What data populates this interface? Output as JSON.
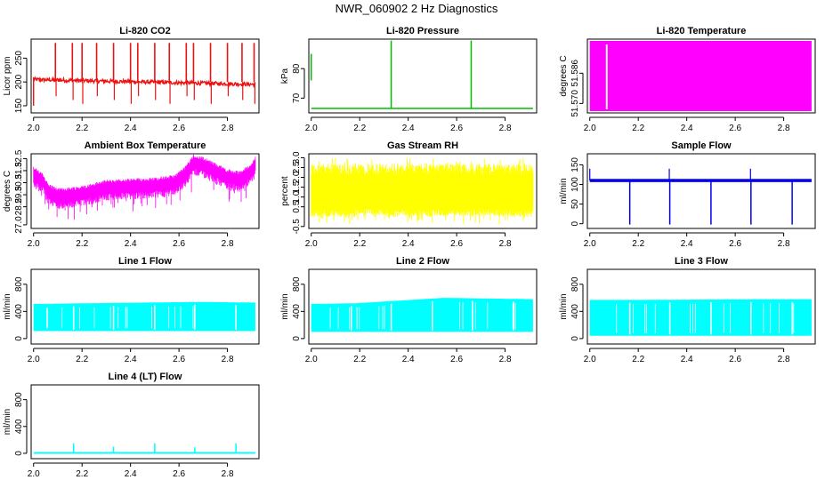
{
  "title": "NWR_060902 2 Hz Diagnostics",
  "chart_data": [
    {
      "type": "line",
      "title": "Li-820 CO2",
      "ylabel": "Licor ppm",
      "color": "#ee1111",
      "x_ticks": [
        "2.0",
        "2.2",
        "2.4",
        "2.6",
        "2.8"
      ],
      "x_range": [
        1.99,
        2.93
      ],
      "y_ticks": [
        "150",
        "200",
        "250"
      ],
      "y_tick_values": [
        150,
        200,
        250
      ],
      "y_range": [
        135,
        290
      ],
      "series": {
        "kind": "co2",
        "baseline_start": 205,
        "baseline_end": 195,
        "spike_x": [
          2.09,
          2.16,
          2.2,
          2.26,
          2.33,
          2.4,
          2.43,
          2.5,
          2.56,
          2.63,
          2.66,
          2.73,
          2.8,
          2.86,
          2.91
        ]
      }
    },
    {
      "type": "line",
      "title": "Li-820 Pressure",
      "ylabel": "kPa",
      "color": "#00bb00",
      "x_ticks": [
        "2.0",
        "2.2",
        "2.4",
        "2.6",
        "2.8"
      ],
      "x_range": [
        1.99,
        2.93
      ],
      "y_ticks": [
        "70",
        "80"
      ],
      "y_tick_values": [
        70,
        80
      ],
      "y_range": [
        65,
        90
      ],
      "series": {
        "kind": "pressure",
        "baseline": 66.5,
        "spike_x": [
          2.33,
          2.66
        ],
        "spike_top": 89.5,
        "start_mark": {
          "x": 2.0,
          "from": 76,
          "to": 85
        }
      }
    },
    {
      "type": "area",
      "title": "Li-820 Temperature",
      "ylabel": "degrees C",
      "color": "#ff00ff",
      "x_ticks": [
        "2.0",
        "2.2",
        "2.4",
        "2.6",
        "2.8"
      ],
      "x_range": [
        1.99,
        2.93
      ],
      "y_ticks": [
        "51.570",
        "51.586"
      ],
      "y_tick_values": [
        51.57,
        51.586
      ],
      "y_range": [
        51.565,
        51.604
      ],
      "series": {
        "kind": "temp",
        "x_start": 2.0,
        "x_end": 2.915,
        "gap_x": 2.07
      }
    },
    {
      "type": "line",
      "title": "Ambient Box Temperature",
      "ylabel": "degrees C",
      "color": "#ff00ff",
      "x_ticks": [
        "2.0",
        "2.2",
        "2.4",
        "2.6",
        "2.8"
      ],
      "x_range": [
        1.99,
        2.93
      ],
      "y_ticks": [
        "27.0",
        "28.5",
        "29.5",
        "30.5",
        "31.5",
        "32.5"
      ],
      "y_tick_values": [
        27.0,
        28.5,
        29.5,
        30.5,
        31.5,
        32.5
      ],
      "y_range": [
        26.7,
        32.9
      ],
      "series": {
        "kind": "ambient",
        "profile_x": [
          2.0,
          2.04,
          2.06,
          2.1,
          2.2,
          2.3,
          2.4,
          2.5,
          2.58,
          2.62,
          2.66,
          2.7,
          2.75,
          2.8,
          2.85,
          2.9,
          2.92
        ],
        "profile_y": [
          31.2,
          30.6,
          29.8,
          29.4,
          29.6,
          30.1,
          30.2,
          30.3,
          30.5,
          31.1,
          32.2,
          32.0,
          31.5,
          31.0,
          30.8,
          31.5,
          32.2
        ]
      }
    },
    {
      "type": "line",
      "title": "Gas Stream RH",
      "ylabel": "percent",
      "color": "#ffff00",
      "x_ticks": [
        "2.0",
        "2.2",
        "2.4",
        "2.6",
        "2.8"
      ],
      "x_range": [
        1.99,
        2.93
      ],
      "y_ticks": [
        "-0.5",
        "0.5",
        "1.0",
        "1.5",
        "2.0",
        "2.5",
        "3.0"
      ],
      "y_tick_values": [
        -0.5,
        0.5,
        1.0,
        1.5,
        2.0,
        2.5,
        3.0
      ],
      "y_range": [
        -0.6,
        3.2
      ],
      "series": {
        "kind": "rh",
        "low": 0.0,
        "high": 2.7
      }
    },
    {
      "type": "line",
      "title": "Sample Flow",
      "ylabel": "ml/min",
      "color": "#0000ee",
      "x_ticks": [
        "2.0",
        "2.2",
        "2.4",
        "2.6",
        "2.8"
      ],
      "x_range": [
        1.99,
        2.93
      ],
      "y_ticks": [
        "0",
        "50",
        "100",
        "150"
      ],
      "y_tick_values": [
        0,
        50,
        100,
        150
      ],
      "y_range": [
        -12,
        178
      ],
      "series": {
        "kind": "sample",
        "baseline": 110,
        "dip_x": [
          2.165,
          2.33,
          2.5,
          2.665,
          2.835
        ],
        "dip_y": -2,
        "spike_x": [
          2.33,
          2.665
        ],
        "spike_y": 140
      }
    },
    {
      "type": "area",
      "title": "Line 1 Flow",
      "ylabel": "ml/min",
      "color": "#00ffff",
      "x_ticks": [
        "2.0",
        "2.2",
        "2.4",
        "2.6",
        "2.8"
      ],
      "x_range": [
        1.99,
        2.93
      ],
      "y_ticks": [
        "0",
        "400",
        "800"
      ],
      "y_tick_values": [
        0,
        400,
        800
      ],
      "y_range": [
        -80,
        1020
      ],
      "series": {
        "kind": "band",
        "x_start": 2.0,
        "x_end": 2.915,
        "low": 110,
        "high": [
          510,
          520,
          530,
          540,
          530
        ],
        "gaps": [
          2.165,
          2.33,
          2.5,
          2.665,
          2.835
        ]
      }
    },
    {
      "type": "area",
      "title": "Line 2 Flow",
      "ylabel": "ml/min",
      "color": "#00ffff",
      "x_ticks": [
        "2.0",
        "2.2",
        "2.4",
        "2.6",
        "2.8"
      ],
      "x_range": [
        1.99,
        2.93
      ],
      "y_ticks": [
        "0",
        "400",
        "800"
      ],
      "y_tick_values": [
        0,
        400,
        800
      ],
      "y_range": [
        -80,
        1020
      ],
      "series": {
        "kind": "band",
        "x_start": 2.0,
        "x_end": 2.915,
        "low": 100,
        "high": [
          510,
          520,
          560,
          600,
          590,
          580
        ],
        "gaps": [
          2.165,
          2.33,
          2.5,
          2.665,
          2.835
        ]
      }
    },
    {
      "type": "area",
      "title": "Line 3 Flow",
      "ylabel": "ml/min",
      "color": "#00ffff",
      "x_ticks": [
        "2.0",
        "2.2",
        "2.4",
        "2.6",
        "2.8"
      ],
      "x_range": [
        1.99,
        2.93
      ],
      "y_ticks": [
        "0",
        "400",
        "800"
      ],
      "y_tick_values": [
        0,
        400,
        800
      ],
      "y_range": [
        -80,
        1020
      ],
      "series": {
        "kind": "band",
        "x_start": 2.0,
        "x_end": 2.915,
        "low": 40,
        "high": [
          570,
          570,
          575,
          580,
          580
        ],
        "gaps": [
          2.165,
          2.33,
          2.5,
          2.665,
          2.835
        ]
      }
    },
    {
      "type": "line",
      "title": "Line 4 (LT) Flow",
      "ylabel": "ml/min",
      "color": "#00ffff",
      "x_ticks": [
        "2.0",
        "2.2",
        "2.4",
        "2.6",
        "2.8"
      ],
      "x_range": [
        1.99,
        2.93
      ],
      "y_ticks": [
        "0",
        "400",
        "800"
      ],
      "y_tick_values": [
        0,
        400,
        800
      ],
      "y_range": [
        -80,
        1020
      ],
      "series": {
        "kind": "lt",
        "baseline": 5,
        "spike_x": [
          2.165,
          2.33,
          2.5,
          2.665,
          2.835
        ],
        "spike_y": [
          150,
          100,
          150,
          90,
          150
        ]
      }
    }
  ]
}
